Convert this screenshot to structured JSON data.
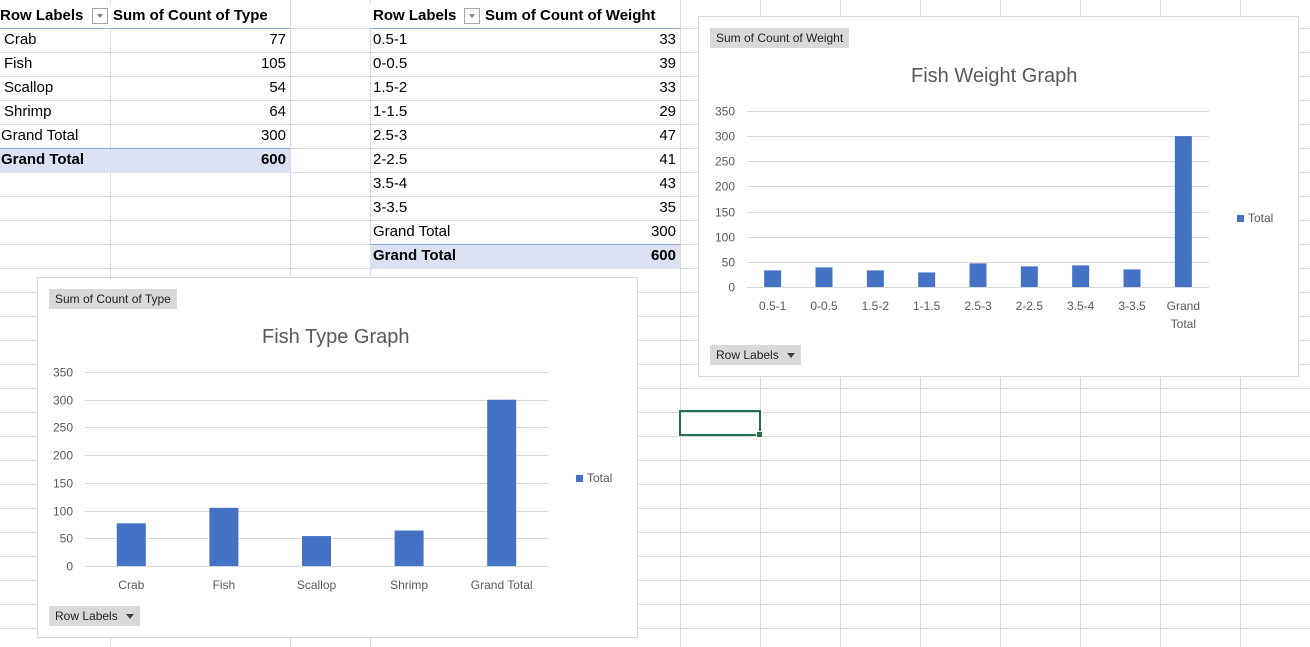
{
  "pivot_type": {
    "row_labels_header": "Row Labels",
    "value_header": "Sum of Count of  Type",
    "rows": [
      {
        "label": "Crab",
        "value": "77"
      },
      {
        "label": "Fish",
        "value": "105"
      },
      {
        "label": "Scallop",
        "value": "54"
      },
      {
        "label": "Shrimp",
        "value": "64"
      }
    ],
    "inner_total": {
      "label": "Grand Total",
      "value": "300"
    },
    "grand_total": {
      "label": "Grand Total",
      "value": "600"
    }
  },
  "pivot_weight": {
    "row_labels_header": "Row Labels",
    "value_header": "Sum of Count of  Weight",
    "rows": [
      {
        "label": "0.5-1",
        "value": "33"
      },
      {
        "label": "0-0.5",
        "value": "39"
      },
      {
        "label": "1.5-2",
        "value": "33"
      },
      {
        "label": "1-1.5",
        "value": "29"
      },
      {
        "label": "2.5-3",
        "value": "47"
      },
      {
        "label": "2-2.5",
        "value": "41"
      },
      {
        "label": "3.5-4",
        "value": "43"
      },
      {
        "label": "3-3.5",
        "value": "35"
      }
    ],
    "inner_total": {
      "label": "Grand Total",
      "value": "300"
    },
    "grand_total": {
      "label": "Grand Total",
      "value": "600"
    }
  },
  "colors": {
    "bar": "#4472c4",
    "pivot_band": "#d9e1f2",
    "selection": "#217346"
  },
  "chart_data": [
    {
      "type": "bar",
      "title": "Fish Type Graph",
      "value_field_button": "Sum of Count of  Type",
      "axis_field_button": "Row Labels",
      "categories": [
        "Crab",
        "Fish",
        "Scallop",
        "Shrimp",
        "Grand Total"
      ],
      "series": [
        {
          "name": "Total",
          "values": [
            77,
            105,
            54,
            64,
            300
          ]
        }
      ],
      "yticks": [
        "0",
        "50",
        "100",
        "150",
        "200",
        "250",
        "300",
        "350"
      ],
      "ylim": [
        0,
        350
      ],
      "grid": true,
      "legend": "right"
    },
    {
      "type": "bar",
      "title": "Fish Weight Graph",
      "value_field_button": "Sum of Count of  Weight",
      "axis_field_button": "Row Labels",
      "categories": [
        "0.5-1",
        "0-0.5",
        "1.5-2",
        "1-1.5",
        "2.5-3",
        "2-2.5",
        "3.5-4",
        "3-3.5",
        "Grand Total"
      ],
      "series": [
        {
          "name": "Total",
          "values": [
            33,
            39,
            33,
            29,
            47,
            41,
            43,
            35,
            300
          ]
        }
      ],
      "yticks": [
        "0",
        "50",
        "100",
        "150",
        "200",
        "250",
        "300",
        "350"
      ],
      "ylim": [
        0,
        350
      ],
      "grid": true,
      "legend": "right"
    }
  ]
}
